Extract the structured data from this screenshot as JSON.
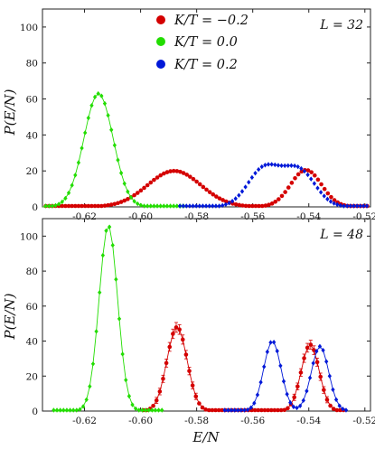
{
  "colors": {
    "red": "#d40000",
    "green": "#22dd00",
    "blue": "#0018d8",
    "axis": "#222222"
  },
  "chart_data": [
    {
      "type": "line",
      "panel": "top",
      "annotation": "L = 32",
      "ylabel": "P(E/N)",
      "xlabel": "",
      "xlim": [
        -0.635,
        -0.518
      ],
      "ylim": [
        0,
        110
      ],
      "xticks": [
        -0.62,
        -0.6,
        -0.58,
        -0.56,
        -0.54,
        -0.52
      ],
      "xtick_labels": [
        "-0.62",
        "-0.60",
        "-0.58",
        "-0.56",
        "-0.54",
        "-0.52"
      ],
      "yticks": [
        0,
        20,
        40,
        60,
        80,
        100
      ],
      "ytick_labels": [
        "0",
        "20",
        "40",
        "60",
        "80",
        "100"
      ],
      "legend": {
        "position": "top-center"
      },
      "series": [
        {
          "name": "K/T = −0.2",
          "color": "red",
          "marker": "circle",
          "line": false,
          "x_range": [
            -0.635,
            -0.519
          ],
          "components": [
            {
              "amp": 20,
              "mu": -0.588,
              "sigma": 0.0095
            },
            {
              "amp": 20.5,
              "mu": -0.541,
              "sigma": 0.0055
            }
          ]
        },
        {
          "name": "K/T = 0.0",
          "color": "green",
          "marker": "diamond",
          "line": true,
          "x_range": [
            -0.635,
            -0.584
          ],
          "components": [
            {
              "amp": 63,
              "mu": -0.615,
              "sigma": 0.0052
            }
          ]
        },
        {
          "name": "K/T = 0.2",
          "color": "blue",
          "marker": "diamond",
          "line": false,
          "x_range": [
            -0.586,
            -0.518
          ],
          "components": [
            {
              "amp": 21,
              "mu": -0.556,
              "sigma": 0.0058
            },
            {
              "amp": 20,
              "mu": -0.5435,
              "sigma": 0.0058
            }
          ]
        }
      ]
    },
    {
      "type": "line",
      "panel": "bottom",
      "annotation": "L = 48",
      "ylabel": "P(E/N)",
      "xlabel": "E/N",
      "xlim": [
        -0.635,
        -0.518
      ],
      "ylim": [
        0,
        110
      ],
      "xticks": [
        -0.62,
        -0.6,
        -0.58,
        -0.56,
        -0.54,
        -0.52
      ],
      "xtick_labels": [
        "-0.62",
        "-0.60",
        "-0.58",
        "-0.56",
        "-0.54",
        "-0.52"
      ],
      "yticks": [
        0,
        20,
        40,
        60,
        80,
        100
      ],
      "ytick_labels": [
        "0",
        "20",
        "40",
        "60",
        "80",
        "100"
      ],
      "series": [
        {
          "name": "K/T = −0.2",
          "color": "red",
          "marker": "circle",
          "line": true,
          "errorbars": true,
          "x_range": [
            -0.599,
            -0.527
          ],
          "components": [
            {
              "amp": 48,
              "mu": -0.587,
              "sigma": 0.0036
            },
            {
              "amp": 38,
              "mu": -0.5395,
              "sigma": 0.0032
            }
          ]
        },
        {
          "name": "K/T = 0.0",
          "color": "green",
          "marker": "diamond",
          "line": true,
          "x_range": [
            -0.631,
            -0.592
          ],
          "components": [
            {
              "amp": 106,
              "mu": -0.6115,
              "sigma": 0.0033
            }
          ]
        },
        {
          "name": "K/T = 0.2",
          "color": "blue",
          "marker": "diamond",
          "line": true,
          "x_range": [
            -0.57,
            -0.526
          ],
          "components": [
            {
              "amp": 40,
              "mu": -0.553,
              "sigma": 0.0031
            },
            {
              "amp": 37,
              "mu": -0.536,
              "sigma": 0.0031
            }
          ]
        }
      ]
    }
  ]
}
